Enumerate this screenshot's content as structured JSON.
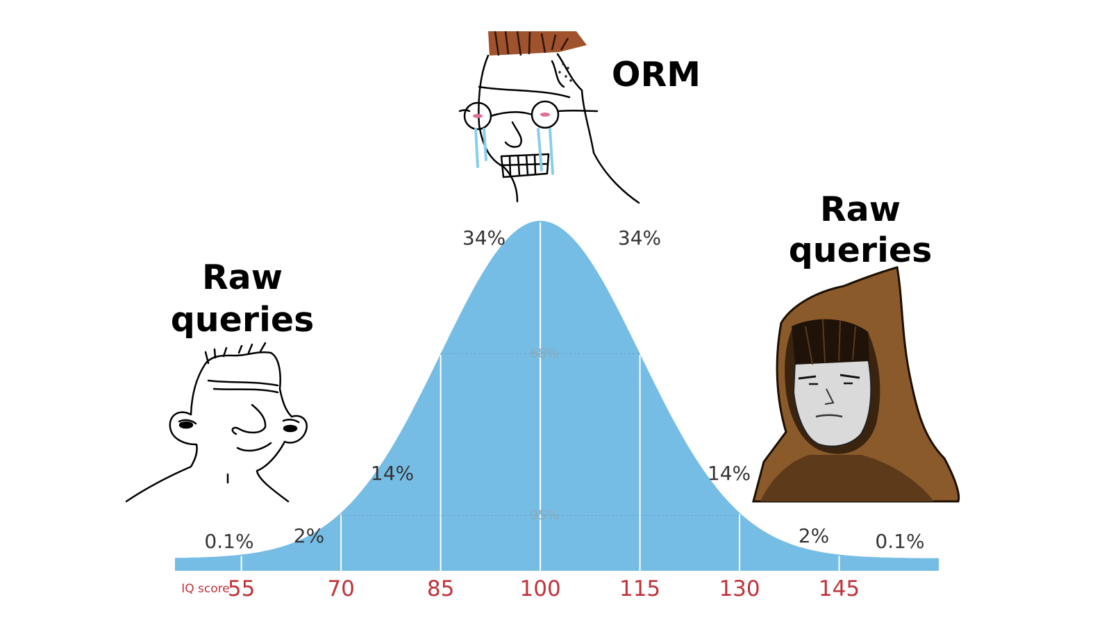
{
  "captions": {
    "left": {
      "line1": "Raw",
      "line2": "queries"
    },
    "middle": {
      "text": "ORM"
    },
    "right": {
      "line1": "Raw",
      "line2": "queries"
    }
  },
  "chart_data": {
    "type": "area",
    "distribution": "normal",
    "mean": 100,
    "sd": 15,
    "axis_label": "IQ score",
    "ticks": [
      "55",
      "70",
      "85",
      "100",
      "115",
      "130",
      "145"
    ],
    "xlim": [
      45,
      160
    ],
    "bands": [
      {
        "range": [
          45,
          55
        ],
        "label": "0.1%"
      },
      {
        "range": [
          55,
          70
        ],
        "label": "2%"
      },
      {
        "range": [
          70,
          85
        ],
        "label": "14%"
      },
      {
        "range": [
          85,
          100
        ],
        "label": "34%"
      },
      {
        "range": [
          100,
          115
        ],
        "label": "34%"
      },
      {
        "range": [
          115,
          130
        ],
        "label": "14%"
      },
      {
        "range": [
          130,
          145
        ],
        "label": "2%"
      },
      {
        "range": [
          145,
          160
        ],
        "label": "0.1%"
      }
    ],
    "inner_labels": {
      "one_sd": "68%",
      "two_sd": "95%"
    },
    "fill_color": "#76bde5"
  },
  "colors": {
    "curve_fill": "#76bde5",
    "tick_text": "#c0313a",
    "orm_hair": "#a0522d",
    "hood": "#8b5a2b",
    "tears": "#87ceeb"
  },
  "characters": {
    "left": "wojak-smiling",
    "middle": "wojak-crying-glasses",
    "right": "hooded-figure"
  }
}
